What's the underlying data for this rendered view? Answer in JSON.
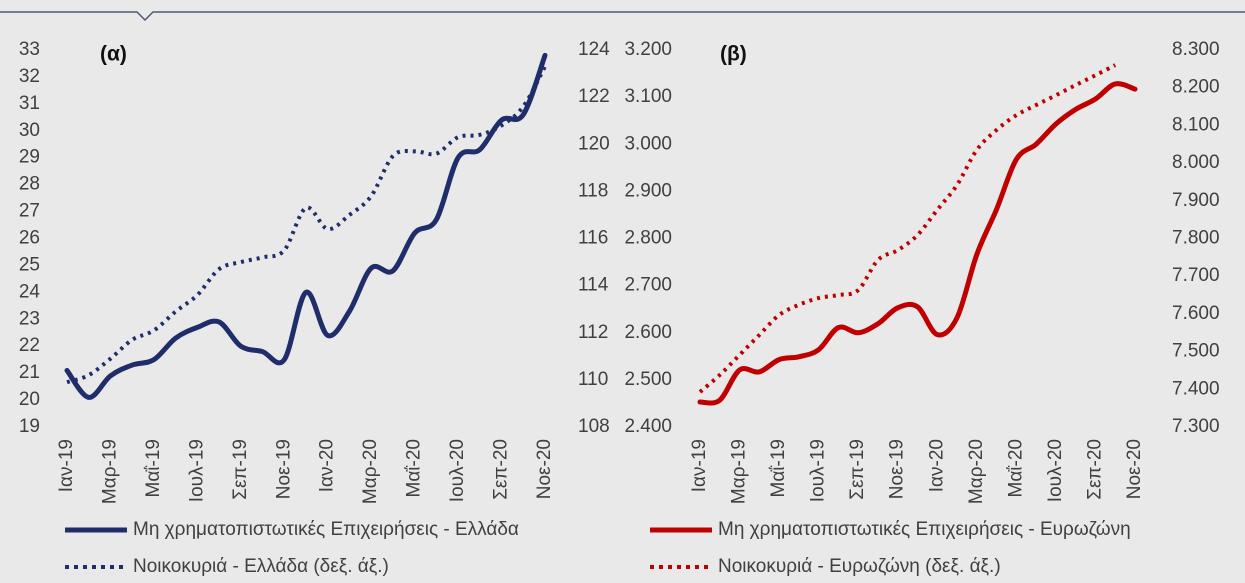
{
  "chart_data": [
    {
      "type": "line",
      "label": "(α)",
      "categories": [
        "Ιαν-19",
        null,
        "Μαρ-19",
        null,
        "Μαΐ-19",
        null,
        "Ιουλ-19",
        null,
        "Σεπ-19",
        null,
        "Νοε-19",
        null,
        "Ιαν-20",
        null,
        "Μαρ-20",
        null,
        "Μαΐ-20",
        null,
        "Ιουλ-20",
        null,
        "Σεπ-20",
        null,
        "Νοε-20"
      ],
      "ylim": [
        19,
        33
      ],
      "yticks": [
        19,
        20,
        21,
        22,
        23,
        24,
        25,
        26,
        27,
        28,
        29,
        30,
        31,
        32,
        33
      ],
      "y2lim": [
        108,
        124
      ],
      "y2ticks": [
        108,
        110,
        112,
        114,
        116,
        118,
        120,
        122,
        124
      ],
      "series": [
        {
          "name": "Μη χρηματοπιστωτικές Επιχειρήσεις - Ελλάδα",
          "color": "#1f2d6b",
          "style": "solid",
          "values": [
            21.1,
            20.1,
            20.9,
            21.3,
            21.5,
            22.3,
            22.7,
            22.9,
            22.0,
            21.8,
            21.5,
            24.0,
            22.4,
            23.3,
            24.9,
            24.8,
            26.2,
            26.7,
            29.0,
            29.3,
            30.4,
            30.6,
            32.8
          ]
        },
        {
          "name": "Νοικοκυριά - Ελλάδα (δεξ. άξ.)",
          "color": "#1f2d6b",
          "style": "dotted",
          "axis": "y2",
          "values": [
            109.9,
            110.2,
            110.9,
            111.7,
            112.1,
            112.9,
            113.6,
            114.7,
            115.0,
            115.2,
            115.5,
            117.3,
            116.4,
            117.0,
            117.8,
            119.5,
            119.7,
            119.6,
            120.3,
            120.4,
            120.8,
            121.6,
            123.3
          ]
        }
      ]
    },
    {
      "type": "line",
      "label": "(β)",
      "categories": [
        "Ιαν-19",
        null,
        "Μαρ-19",
        null,
        "Μαΐ-19",
        null,
        "Ιουλ-19",
        null,
        "Σεπ-19",
        null,
        "Νοε-19",
        null,
        "Ιαν-20",
        null,
        "Μαρ-20",
        null,
        "Μαΐ-20",
        null,
        "Ιουλ-20",
        null,
        "Σεπ-20",
        null,
        "Νοε-20"
      ],
      "ylim": [
        2400,
        3200
      ],
      "yticks": [
        {
          "value": 2400,
          "label": "2.400"
        },
        {
          "value": 2500,
          "label": "2.500"
        },
        {
          "value": 2600,
          "label": "2.600"
        },
        {
          "value": 2700,
          "label": "2.700"
        },
        {
          "value": 2800,
          "label": "2.800"
        },
        {
          "value": 2900,
          "label": "2.900"
        },
        {
          "value": 3000,
          "label": "3.000"
        },
        {
          "value": 3100,
          "label": "3.100"
        },
        {
          "value": 3200,
          "label": "3.200"
        }
      ],
      "y2lim": [
        7300,
        8300
      ],
      "y2ticks": [
        {
          "value": 7300,
          "label": "7.300"
        },
        {
          "value": 7400,
          "label": "7.400"
        },
        {
          "value": 7500,
          "label": "7.500"
        },
        {
          "value": 7600,
          "label": "7.600"
        },
        {
          "value": 7700,
          "label": "7.700"
        },
        {
          "value": 7800,
          "label": "7.800"
        },
        {
          "value": 7900,
          "label": "7.900"
        },
        {
          "value": 8000,
          "label": "8.000"
        },
        {
          "value": 8100,
          "label": "8.100"
        },
        {
          "value": 8200,
          "label": "8.200"
        },
        {
          "value": 8300,
          "label": "8.300"
        }
      ],
      "series": [
        {
          "name": "Μη χρηματοπιστωτικές Επιχειρήσεις - Ευρωζώνη",
          "color": "#c00000",
          "style": "solid",
          "values": [
            2453,
            2457,
            2521,
            2517,
            2543,
            2549,
            2564,
            2611,
            2600,
            2619,
            2653,
            2655,
            2596,
            2632,
            2766,
            2862,
            2968,
            3000,
            3043,
            3074,
            3096,
            3128,
            3117
          ]
        },
        {
          "name": "Νοικοκυριά - Ευρωζώνη (δεξ. άξ.)",
          "color": "#c00000",
          "style": "dotted",
          "axis": "y2",
          "values": [
            7393,
            7438,
            7491,
            7544,
            7597,
            7624,
            7642,
            7650,
            7663,
            7743,
            7769,
            7809,
            7876,
            7942,
            8035,
            8088,
            8127,
            8154,
            8180,
            8207,
            8233,
            8260,
            null
          ]
        }
      ]
    }
  ]
}
